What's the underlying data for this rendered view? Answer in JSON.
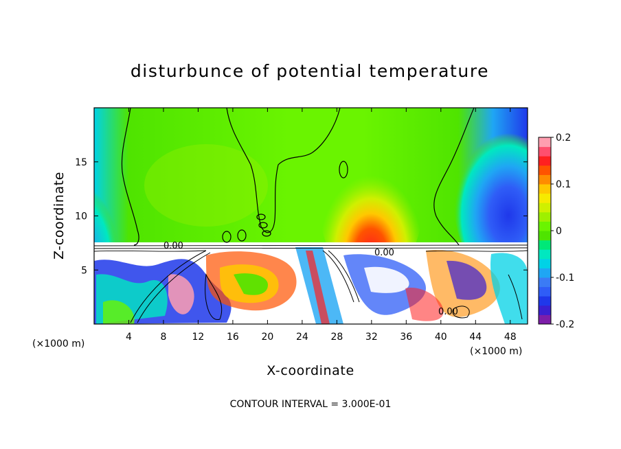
{
  "chart_data": {
    "type": "heatmap",
    "title": "disturbunce of potential temperature",
    "xlabel": "X-coordinate",
    "ylabel": "Z-coordinate",
    "x_unit_left": "(×1000 m)",
    "x_unit_right": "(×1000 m)",
    "xlim": [
      0,
      50
    ],
    "ylim": [
      0,
      20
    ],
    "x_ticks": [
      {
        "value": 4,
        "label": "4"
      },
      {
        "value": 8,
        "label": "8"
      },
      {
        "value": 12,
        "label": "12"
      },
      {
        "value": 16,
        "label": "16"
      },
      {
        "value": 20,
        "label": "20"
      },
      {
        "value": 24,
        "label": "24"
      },
      {
        "value": 28,
        "label": "28"
      },
      {
        "value": 32,
        "label": "32"
      },
      {
        "value": 36,
        "label": "36"
      },
      {
        "value": 40,
        "label": "40"
      },
      {
        "value": 44,
        "label": "44"
      },
      {
        "value": 48,
        "label": "48"
      }
    ],
    "y_ticks": [
      {
        "value": 5,
        "label": "5"
      },
      {
        "value": 10,
        "label": "10"
      },
      {
        "value": 15,
        "label": "15"
      }
    ],
    "colorbar": {
      "range": [
        -0.2,
        0.2
      ],
      "ticks": [
        {
          "value": 0.2,
          "label": "0.2"
        },
        {
          "value": 0.1,
          "label": "0.1"
        },
        {
          "value": 0,
          "label": "0"
        },
        {
          "value": -0.1,
          "label": "-0.1"
        },
        {
          "value": -0.2,
          "label": "-0.2"
        }
      ],
      "colors": [
        "#7d1ea9",
        "#3a20d1",
        "#1f38ea",
        "#2f5df7",
        "#3b7bf5",
        "#1fa6f4",
        "#00d2e6",
        "#00e8c0",
        "#00e878",
        "#4fe400",
        "#6af400",
        "#9ef000",
        "#cff000",
        "#f6ea00",
        "#ffc800",
        "#ff8c00",
        "#ff5300",
        "#ff2020",
        "#ff4f6e",
        "#ff9eb0"
      ]
    },
    "contour_label": "0.00",
    "contour_interval_text": "CONTOUR INTERVAL = 3.000E-01"
  }
}
